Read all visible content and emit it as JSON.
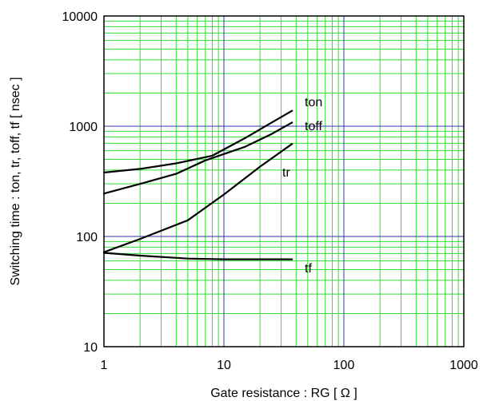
{
  "chart_data": {
    "type": "line",
    "xlabel": "Gate resistance : RG [ Ω ]",
    "ylabel": "Switching time : ton, tr, toff, tf [ nsec ]",
    "x_scale": "log",
    "y_scale": "log",
    "xlim": [
      1,
      1000
    ],
    "ylim": [
      10,
      10000
    ],
    "x_ticks": [
      "1",
      "10",
      "100",
      "1000"
    ],
    "y_ticks": [
      "10",
      "100",
      "1000",
      "10000"
    ],
    "grid": true,
    "colors": {
      "minor_grid": "#33dd33",
      "major_grid": "#3333aa",
      "line": "#000000"
    },
    "series": [
      {
        "name": "ton",
        "x": [
          1,
          2,
          4,
          8,
          15,
          25,
          37
        ],
        "y": [
          380,
          410,
          460,
          540,
          780,
          1080,
          1380
        ]
      },
      {
        "name": "toff",
        "x": [
          1,
          2,
          4,
          7,
          10,
          15,
          25,
          37
        ],
        "y": [
          245,
          300,
          370,
          490,
          560,
          650,
          850,
          1080
        ]
      },
      {
        "name": "tr",
        "x": [
          1,
          2,
          5,
          10,
          20,
          37
        ],
        "y": [
          72,
          95,
          140,
          240,
          430,
          690
        ]
      },
      {
        "name": "tf",
        "x": [
          1,
          2,
          5,
          10,
          20,
          37
        ],
        "y": [
          71,
          67,
          63,
          62,
          62,
          62
        ]
      }
    ]
  }
}
